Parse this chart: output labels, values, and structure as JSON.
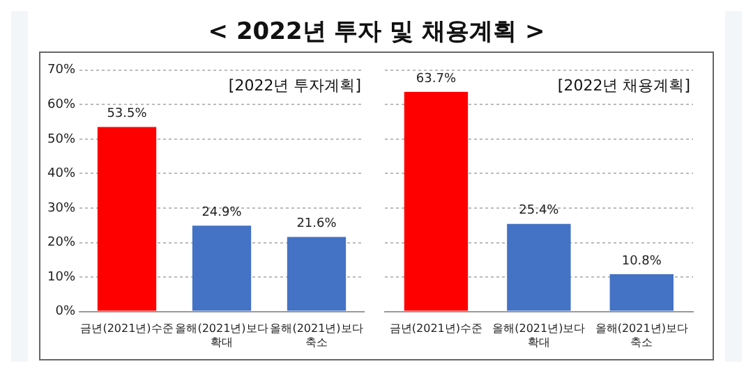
{
  "chart_data": [
    {
      "type": "bar",
      "title": "< 2022년 투자 및 채용계획 >",
      "subtitle": "[2022년 투자계획]",
      "categories": [
        "금년(2021년)수준",
        "올해(2021년)보다 확대",
        "올해(2021년)보다 축소"
      ],
      "values": [
        53.5,
        24.9,
        21.6
      ],
      "colors": [
        "#ff0000",
        "#4472c4",
        "#4472c4"
      ],
      "value_labels": [
        "53.5%",
        "24.9%",
        "21.6%"
      ],
      "ylim": [
        0,
        70
      ],
      "yticks": [
        {
          "value": 0,
          "label": "0%"
        },
        {
          "value": 10,
          "label": "10%"
        },
        {
          "value": 20,
          "label": "20%"
        },
        {
          "value": 30,
          "label": "30%"
        },
        {
          "value": 40,
          "label": "40%"
        },
        {
          "value": 50,
          "label": "50%"
        },
        {
          "value": 60,
          "label": "60%"
        },
        {
          "value": 70,
          "label": "70%"
        }
      ],
      "grid": "y"
    },
    {
      "type": "bar",
      "subtitle": "[2022년 채용계획]",
      "categories": [
        "금년(2021년)수준",
        "올해(2021년)보다 확대",
        "올해(2021년)보다 축소"
      ],
      "values": [
        63.7,
        25.4,
        10.8
      ],
      "colors": [
        "#ff0000",
        "#4472c4",
        "#4472c4"
      ],
      "value_labels": [
        "63.7%",
        "25.4%",
        "10.8%"
      ],
      "ylim": [
        0,
        70
      ],
      "yticks": [
        0,
        10,
        20,
        30,
        40,
        50,
        60,
        70
      ],
      "grid": "y",
      "tick_labels": "x"
    }
  ]
}
